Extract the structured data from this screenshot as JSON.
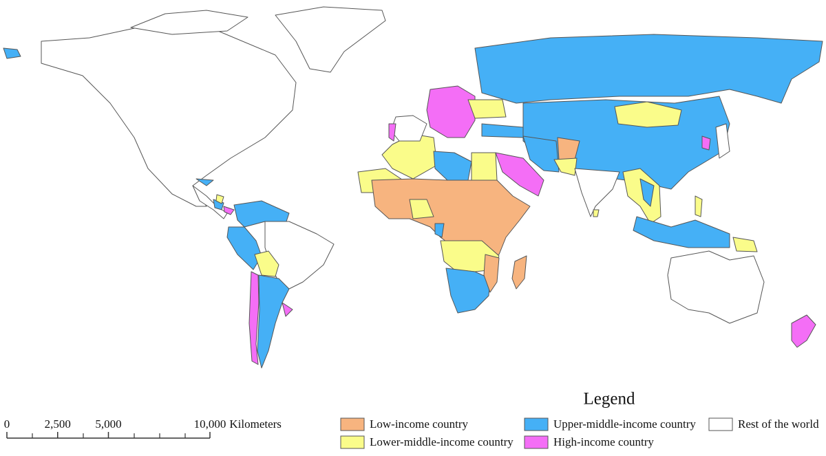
{
  "legend": {
    "title": "Legend",
    "items": [
      {
        "key": "low",
        "label": "Low-income country",
        "color": "#f7b47f"
      },
      {
        "key": "upper",
        "label": "Upper-middle-income country",
        "color": "#45b0f6"
      },
      {
        "key": "rest",
        "label": "Rest of the world",
        "color": "#ffffff"
      },
      {
        "key": "lower",
        "label": "Lower-middle-income country",
        "color": "#fafc8a"
      },
      {
        "key": "high",
        "label": "High-income country",
        "color": "#f46ef6"
      }
    ]
  },
  "scale_bar": {
    "lim": [
      0,
      10000
    ],
    "ticks": [
      {
        "value": 0,
        "label": "0"
      },
      {
        "value": 2500,
        "label": "2,500"
      },
      {
        "value": 5000,
        "label": "5,000"
      },
      {
        "value": 10000,
        "label": "10,000"
      }
    ],
    "unit": "Kilometers"
  }
}
